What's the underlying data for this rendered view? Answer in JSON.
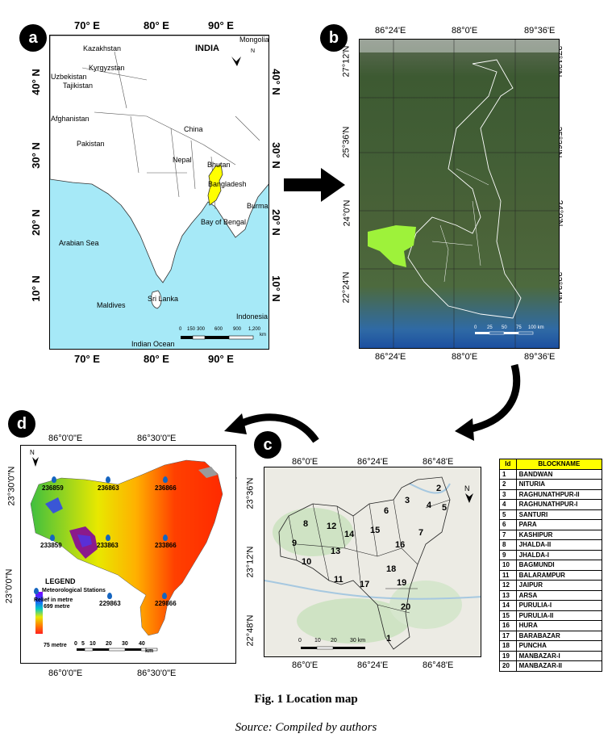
{
  "figure": {
    "caption": "Fig. 1 Location map",
    "source": "Source: Compiled by authors"
  },
  "panel_a": {
    "badge": "a",
    "title": "INDIA",
    "lon_ticks": [
      "70° E",
      "80° E",
      "90° E"
    ],
    "lat_ticks": [
      "40° N",
      "30° N",
      "20° N",
      "10° N"
    ],
    "labels": {
      "mongolia": "Mongolia",
      "kazakhstan": "Kazakhstan",
      "kyrgyzstan": "Kyrgyzstan",
      "uzbekistan": "Uzbekistan",
      "tajikistan": "Tajikistan",
      "afghanistan": "Afghanistan",
      "pakistan": "Pakistan",
      "china": "China",
      "nepal": "Nepal",
      "bhutan": "Bhutan",
      "bangladesh": "Bangladesh",
      "burma": "Burma",
      "bay_of_bengal": "Bay of Bengal",
      "arabian_sea": "Arabian Sea",
      "maldives": "Maldives",
      "sri_lanka": "Sri Lanka",
      "indonesia": "Indonesia",
      "indian_ocean": "Indian Ocean"
    },
    "north": "N",
    "scale": [
      "0",
      "150",
      "300",
      "600",
      "900",
      "1,200"
    ],
    "scale_unit": "km",
    "colors": {
      "sea": "#a6e9f7",
      "land": "#ffffff",
      "highlight": "#ffff00"
    }
  },
  "panel_b": {
    "badge": "b",
    "lon_ticks": [
      "86°24'E",
      "88°0'E",
      "89°36'E"
    ],
    "lat_ticks": [
      "27°12'N",
      "25°36'N",
      "24°0'N",
      "22°24'N"
    ],
    "scale": [
      "0",
      "25",
      "50",
      "75",
      "100 km"
    ],
    "colors": {
      "imagery": "#3f5a35",
      "highlight": "#9ef23a"
    }
  },
  "panel_c": {
    "badge": "c",
    "lon_ticks": [
      "86°0'E",
      "86°24'E",
      "86°48'E"
    ],
    "lat_ticks": [
      "23°36'N",
      "23°12'N",
      "22°48'N"
    ],
    "north": "N",
    "scale": [
      "0",
      "10",
      "20",
      "30 km"
    ],
    "block_numbers": [
      "1",
      "2",
      "3",
      "4",
      "5",
      "6",
      "7",
      "8",
      "9",
      "10",
      "11",
      "12",
      "13",
      "14",
      "15",
      "16",
      "17",
      "18",
      "19",
      "20"
    ],
    "table": {
      "headers": [
        "Id",
        "BLOCKNAME"
      ],
      "rows": [
        [
          "1",
          "BANDWAN"
        ],
        [
          "2",
          "NITURIA"
        ],
        [
          "3",
          "RAGHUNATHPUR-II"
        ],
        [
          "4",
          "RAGHUNATHPUR-I"
        ],
        [
          "5",
          "SANTURI"
        ],
        [
          "6",
          "PARA"
        ],
        [
          "7",
          "KASHIPUR"
        ],
        [
          "8",
          "JHALDA-II"
        ],
        [
          "9",
          "JHALDA-I"
        ],
        [
          "10",
          "BAGMUNDI"
        ],
        [
          "11",
          "BALARAMPUR"
        ],
        [
          "12",
          "JAIPUR"
        ],
        [
          "13",
          "ARSA"
        ],
        [
          "14",
          "PURULIA-I"
        ],
        [
          "15",
          "PURULIA-II"
        ],
        [
          "16",
          "HURA"
        ],
        [
          "17",
          "BARABAZAR"
        ],
        [
          "18",
          "PUNCHA"
        ],
        [
          "19",
          "MANBAZAR-I"
        ],
        [
          "20",
          "MANBAZAR-II"
        ]
      ]
    }
  },
  "panel_d": {
    "badge": "d",
    "lon_ticks": [
      "86°0'0\"E",
      "86°30'0\"E"
    ],
    "lat_ticks": [
      "23°30'0\"N",
      "23°0'0\"N"
    ],
    "north": "N",
    "stations": [
      "236859",
      "236863",
      "236866",
      "233859",
      "233863",
      "233866",
      "229863",
      "229866"
    ],
    "legend": {
      "title": "LEGEND",
      "stations_label": "Meteorological Stations",
      "relief_label": "Relief in metre",
      "max": "699 metre",
      "min": "75 metre"
    },
    "scale": [
      "0",
      "5",
      "10",
      "20",
      "30",
      "40"
    ],
    "scale_unit": "km"
  }
}
